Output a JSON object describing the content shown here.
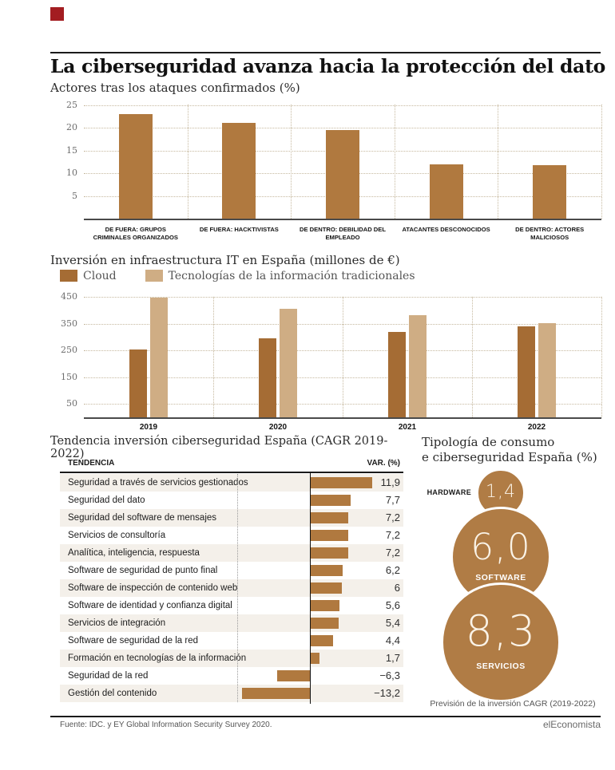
{
  "brand": {
    "mark_color": "#a31d21"
  },
  "header": {
    "title": "La ciberseguridad avanza hacia la protección del dato"
  },
  "chart_data": [
    {
      "type": "bar",
      "title": "Actores tras los ataques confirmados (%)",
      "categories": [
        "DE FUERA: GRUPOS CRIMINALES ORGANIZADOS",
        "DE FUERA: HACKTIVISTAS",
        "DE DENTRO: DEBILIDAD DEL EMPLEADO",
        "ATACANTES DESCONOCIDOS",
        "DE DENTRO: ACTORES MALICIOSOS"
      ],
      "values": [
        23,
        21,
        19.5,
        12,
        11.7
      ],
      "yticks": [
        5,
        10,
        15,
        20,
        25
      ],
      "ylim": [
        0,
        25
      ],
      "grid": true,
      "bar_color": "#b0793f"
    },
    {
      "type": "bar",
      "subtype": "grouped",
      "title": "Inversión en infraestructura IT en España (millones de €)",
      "categories": [
        "2019",
        "2020",
        "2021",
        "2022"
      ],
      "series": [
        {
          "name": "Cloud",
          "color": "#a56c34",
          "values": [
            253,
            295,
            318,
            341
          ]
        },
        {
          "name": "Tecnologías de la información tradicionales",
          "color": "#cfad84",
          "values": [
            448,
            405,
            382,
            353
          ]
        }
      ],
      "yticks": [
        50,
        150,
        250,
        350,
        450
      ],
      "ylim": [
        0,
        460
      ],
      "legend_position": "top",
      "grid": true
    },
    {
      "type": "bar",
      "orientation": "horizontal",
      "title": "Tendencia inversión ciberseguridad España (CAGR 2019-2022)",
      "columns": [
        "TENDENCIA",
        "VAR. (%)"
      ],
      "rows": [
        {
          "label": "Seguridad a través de servicios gestionados",
          "value": 11.9,
          "display": "11,9"
        },
        {
          "label": "Seguridad del dato",
          "value": 7.7,
          "display": "7,7"
        },
        {
          "label": "Seguridad del software de mensajes",
          "value": 7.2,
          "display": "7,2"
        },
        {
          "label": "Servicios de consultoría",
          "value": 7.2,
          "display": "7,2"
        },
        {
          "label": "Analítica, inteligencia, respuesta",
          "value": 7.2,
          "display": "7,2"
        },
        {
          "label": "Software de seguridad de punto final",
          "value": 6.2,
          "display": "6,2"
        },
        {
          "label": "Software de inspección de contenido web",
          "value": 6,
          "display": "6"
        },
        {
          "label": "Software de identidad y confianza digital",
          "value": 5.6,
          "display": "5,6"
        },
        {
          "label": "Servicios de integración",
          "value": 5.4,
          "display": "5,4"
        },
        {
          "label": "Software de seguridad de la red",
          "value": 4.4,
          "display": "4,4"
        },
        {
          "label": "Formación en tecnologías de la información",
          "value": 1.7,
          "display": "1,7"
        },
        {
          "label": "Seguridad de la red",
          "value": -6.3,
          "display": "−6,3"
        },
        {
          "label": "Gestión del contenido",
          "value": -13.2,
          "display": "−13,2"
        }
      ],
      "bar_color": "#b0793f"
    },
    {
      "type": "bubble",
      "title": "Tipología de consumo e ciberseguridad España (%)",
      "title_lines": [
        "Tipología de consumo",
        "e ciberseguridad España (%)"
      ],
      "bubbles": [
        {
          "label": "HARDWARE",
          "value": 1.4,
          "display": "1,4"
        },
        {
          "label": "SOFTWARE",
          "value": 6.0,
          "display": "6,0"
        },
        {
          "label": "SERVICIOS",
          "value": 8.3,
          "display": "8,3"
        }
      ],
      "color": "#b07c45",
      "caption": "Previsión de la inversión CAGR (2019-2022)"
    }
  ],
  "footer": {
    "source": "Fuente: IDC. y EY Global Information Security Survey 2020.",
    "publisher": "elEconomista"
  }
}
